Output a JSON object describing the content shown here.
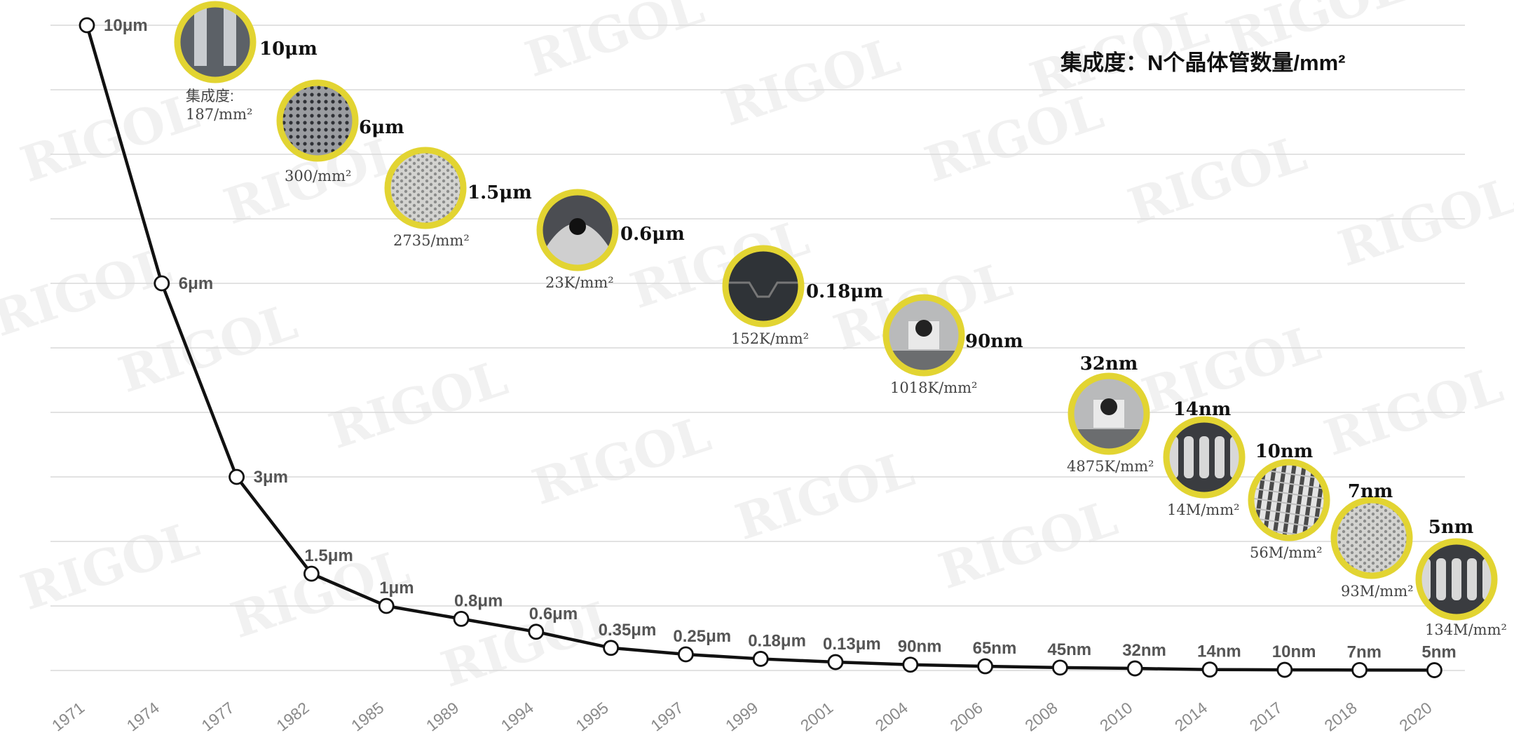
{
  "chart_data": {
    "type": "line",
    "title": "",
    "xlabel": "",
    "ylabel": "",
    "legend_note": "集成度：N个晶体管数量/mm²",
    "grid": true,
    "categories": [
      "1971",
      "1974",
      "1977",
      "1982",
      "1985",
      "1989",
      "1994",
      "1995",
      "1997",
      "1999",
      "2001",
      "2004",
      "2006",
      "2008",
      "2010",
      "2014",
      "2017",
      "2018",
      "2020"
    ],
    "node_labels": [
      "10μm",
      "6μm",
      "3μm",
      "1.5μm",
      "1μm",
      "0.8μm",
      "0.6μm",
      "0.35μm",
      "0.25μm",
      "0.18μm",
      "0.13μm",
      "90nm",
      "65nm",
      "45nm",
      "32nm",
      "14nm",
      "10nm",
      "7nm",
      "5nm"
    ],
    "values_nm": [
      10000,
      6000,
      3000,
      1500,
      1000,
      800,
      600,
      350,
      250,
      180,
      130,
      90,
      65,
      45,
      32,
      14,
      10,
      7,
      5
    ],
    "ylim": [
      0,
      10000
    ],
    "callouts": [
      {
        "node": "10μm",
        "density": "187/mm²",
        "caption": "集成度:",
        "pattern": "trench"
      },
      {
        "node": "6μm",
        "density": "300/mm²",
        "pattern": "dots"
      },
      {
        "node": "1.5μm",
        "density": "2735/mm²",
        "pattern": "mesh"
      },
      {
        "node": "0.6μm",
        "density": "23K/mm²",
        "pattern": "arch"
      },
      {
        "node": "0.18μm",
        "density": "152K/mm²",
        "pattern": "layers"
      },
      {
        "node": "90nm",
        "density": "1018K/mm²",
        "pattern": "gate"
      },
      {
        "node": "32nm",
        "density": "4875K/mm²",
        "pattern": "gate"
      },
      {
        "node": "14nm",
        "density": "14M/mm²",
        "pattern": "fins"
      },
      {
        "node": "10nm",
        "density": "56M/mm²",
        "pattern": "lines"
      },
      {
        "node": "7nm",
        "density": "93M/mm²",
        "pattern": "mesh"
      },
      {
        "node": "5nm",
        "density": "134M/mm²",
        "pattern": "fins"
      }
    ]
  },
  "watermark": "RIGOL",
  "colors": {
    "ring": "#e2d432",
    "line": "#111111",
    "grid": "#d9d9d9"
  }
}
